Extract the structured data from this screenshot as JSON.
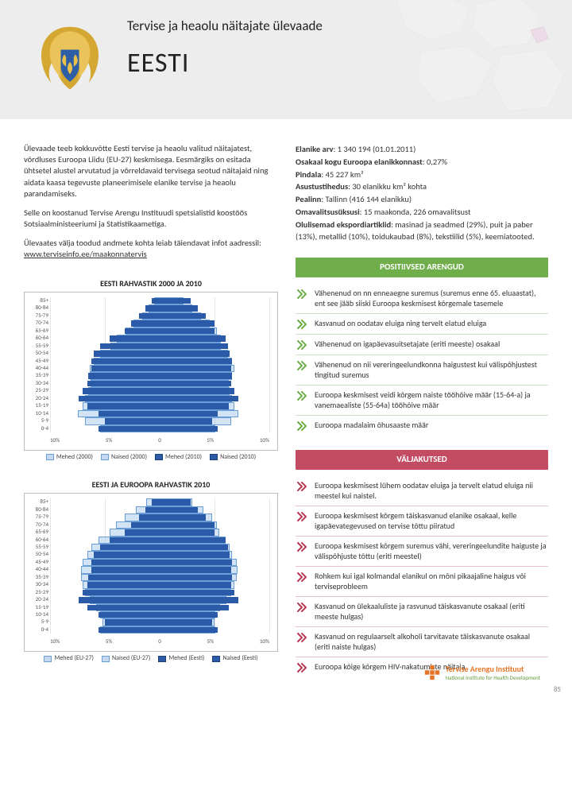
{
  "header": {
    "subtitle": "Tervise ja heaolu näitajate ülevaade",
    "country": "EESTI"
  },
  "intro": {
    "p1": "Ülevaade teeb kokkuvõtte Eesti tervise ja heaolu valitud näitajatest, võrdluses Euroopa Liidu (EU-27) keskmisega. Eesmärgiks on esitada ühtsetel alustel arvutatud ja võrreldavaid tervisega seotud näitajaid ning aidata kaasa tegevuste planeerimisele elanike tervise ja heaolu parandamiseks.",
    "p2": "Selle on koostanud Tervise Arengu Instituudi spetsialistid koostöös Sotsiaalministeeriumi ja Statistikaametiga.",
    "p3_prefix": "Ülevaates välja toodud andmete kohta leiab täiendavat infot aadressil: ",
    "p3_link": "www.terviseinfo.ee/maakonnatervis"
  },
  "facts": {
    "pop_label": "Elanike arv",
    "pop_value": ": 1 340 194 (01.01.2011)",
    "share_label": "Osakaal kogu Euroopa elanikkonnast",
    "share_value": ": 0,27%",
    "area_label": "Pindala",
    "area_value": ": 45 227 km²",
    "density_label": "Asustustihedus",
    "density_value": ": 30 elanikku km² kohta",
    "capital_label": "Pealinn",
    "capital_value": ": Tallinn (416 144 elanikku)",
    "admin_label": "Omavalitsusüksusi",
    "admin_value": ": 15 maakonda, 226 omavalitsust",
    "export_label": "Olulisemad ekspordiartiklid",
    "export_value": ": masinad ja seadmed (29%), puit ja paber (13%), metallid (10%), toidukaubad (8%), tekstiilid (5%), keemiatooted."
  },
  "sections": {
    "positive_title": "POSITIIVSED ARENGUD",
    "positive_items": [
      "Vähenenud on nn enneaegne suremus (suremus enne 65. eluaastat), ent see jääb siiski Euroopa keskmisest kõrgemale tasemele",
      "Kasvanud on oodatav eluiga ning tervelt elatud eluiga",
      "Vähenenud on igapäevasuitsetajate (eriti meeste) osakaal",
      "Vähenenud on nii vereringeelundkonna haigustest kui välispõhjustest tingitud suremus",
      "Euroopa keskmisest veidi kõrgem naiste tööhõive määr (15-64-a) ja vanemaealiste (55-64a) tööhõive määr",
      "Euroopa madalaim õhusaaste määr"
    ],
    "negative_title": "VÄLJAKUTSED",
    "negative_items": [
      "Euroopa keskmisest lühem oodatav eluiga ja tervelt elatud eluiga nii meestel kui naistel.",
      "Euroopa keskmisest kõrgem täiskasvanud elanike osakaal, kelle igapäevategevused on tervise tõttu piiratud",
      "Euroopa keskmisest kõrgem suremus vähi, vereringeelundite haiguste ja välispõhjuste tõttu (eriti meestel)",
      "Rohkem kui igal kolmandal elanikul on mõni pikaajaline haigus või terviseprobleem",
      "Kasvanud on ülekaaluliste ja rasvunud täiskasvanute osakaal (eriti meeste hulgas)",
      "Kasvanud on regulaarselt alkoholi tarvitavate täiskasvanute osakaal (eriti naiste hulgas)",
      "Euroopa kõige kõrgem HIV-nakatumiste näitaja"
    ]
  },
  "colors": {
    "pos_bar": "#6fae4a",
    "neg_bar": "#c34b62",
    "pos_chev": "#6fae4a",
    "neg_chev": "#b63a54",
    "male_solid": "#2b5aa8",
    "male_light": "#9cc0e8",
    "female_solid": "#2b5aa8",
    "female_light": "#9cc0e8",
    "outline_dark": "#1d3f78",
    "outline_light": "#6b9ed6"
  },
  "charts": {
    "chart1": {
      "title": "EESTI RAHVASTIK 2000 JA 2010",
      "type": "population-pyramid",
      "x_ticks": [
        "10%",
        "5%",
        "0",
        "5%",
        "10%"
      ],
      "xmax_pct": 10,
      "age_labels": [
        "85+",
        "80-84",
        "75-79",
        "70-74",
        "65-69",
        "60-64",
        "55-59",
        "50-54",
        "45-49",
        "40-44",
        "35-39",
        "30-34",
        "25-29",
        "20-24",
        "15-19",
        "10-14",
        "5-9",
        "0-4"
      ],
      "legend": [
        "Mehed (2000)",
        "Naised (2000)",
        "Mehed (2010)",
        "Naised (2010)"
      ],
      "legend_colors": [
        "#9cc0e8",
        "#9cc0e8",
        "#2b5aa8",
        "#2b5aa8"
      ],
      "legend_outline": [
        false,
        false,
        true,
        true
      ],
      "series_outline_male": [
        0.5,
        1.0,
        1.6,
        2.4,
        3.1,
        3.9,
        4.5,
        5.4,
        6.0,
        6.4,
        6.4,
        6.3,
        6.5,
        6.8,
        7.0,
        7.5,
        6.8,
        5.4
      ],
      "series_outline_female": [
        2.2,
        3.0,
        3.8,
        4.6,
        5.2,
        5.6,
        5.6,
        6.2,
        6.6,
        6.8,
        6.6,
        6.3,
        6.4,
        6.6,
        6.8,
        7.2,
        6.5,
        5.1
      ],
      "series_solid_male": [
        0.7,
        1.3,
        1.9,
        2.6,
        3.2,
        4.6,
        5.4,
        6.0,
        6.2,
        6.2,
        6.5,
        6.6,
        7.0,
        7.4,
        6.6,
        5.6,
        5.0,
        5.6
      ],
      "series_solid_female": [
        2.8,
        3.5,
        4.2,
        5.0,
        5.0,
        6.0,
        6.2,
        6.4,
        6.6,
        6.5,
        6.6,
        6.5,
        6.8,
        7.2,
        6.3,
        5.3,
        4.8,
        5.3
      ],
      "solid_color_male": "#2b5aa8",
      "solid_color_female": "#2b5aa8",
      "outline_color_male": "#6b9ed6",
      "outline_bg_male": "rgba(156,192,232,0.45)",
      "outline_color_female": "#6b9ed6",
      "outline_bg_female": "rgba(156,192,232,0.45)"
    },
    "chart2": {
      "title": "EESTI JA EUROOPA RAHVASTIK 2010",
      "type": "population-pyramid",
      "x_ticks": [
        "10%",
        "5%",
        "0",
        "5%",
        "10%"
      ],
      "xmax_pct": 10,
      "age_labels": [
        "85+",
        "80-84",
        "75-79",
        "70-74",
        "65-69",
        "60-64",
        "55-59",
        "50-54",
        "45-49",
        "40-44",
        "35-39",
        "30-34",
        "25-29",
        "20-24",
        "15-19",
        "10-14",
        "5-9",
        "0-4"
      ],
      "legend": [
        "Mehed (EU-27)",
        "Naised (EU-27)",
        "Mehed (Eesti)",
        "Naised (Eesti)"
      ],
      "legend_colors": [
        "#9cc0e8",
        "#9cc0e8",
        "#2b5aa8",
        "#2b5aa8"
      ],
      "legend_outline": [
        false,
        false,
        true,
        true
      ],
      "series_outline_male": [
        1.2,
        2.2,
        3.2,
        4.0,
        4.6,
        5.6,
        6.2,
        6.6,
        7.0,
        7.2,
        7.2,
        7.0,
        6.8,
        6.4,
        5.8,
        5.4,
        5.2,
        5.4
      ],
      "series_outline_female": [
        3.0,
        4.0,
        4.8,
        5.2,
        5.4,
        6.0,
        6.4,
        6.6,
        7.0,
        7.1,
        7.0,
        6.8,
        6.5,
        6.1,
        5.5,
        5.1,
        5.0,
        5.1
      ],
      "series_solid_male": [
        0.7,
        1.3,
        1.9,
        2.6,
        3.2,
        4.6,
        5.4,
        6.0,
        6.2,
        6.2,
        6.5,
        6.6,
        7.0,
        7.4,
        6.6,
        5.6,
        5.0,
        5.6
      ],
      "series_solid_female": [
        2.8,
        3.5,
        4.2,
        5.0,
        5.0,
        6.0,
        6.2,
        6.4,
        6.6,
        6.5,
        6.6,
        6.5,
        6.8,
        7.2,
        6.3,
        5.3,
        4.8,
        5.3
      ],
      "solid_color_male": "#2b5aa8",
      "solid_color_female": "#2b5aa8",
      "outline_color_male": "#6b9ed6",
      "outline_bg_male": "rgba(156,192,232,0.45)",
      "outline_color_female": "#6b9ed6",
      "outline_bg_female": "rgba(156,192,232,0.45)"
    }
  },
  "footer": {
    "org1": "Tervise Arengu Instituut",
    "org2": "National Institute for Health Development",
    "page_num": "85"
  }
}
